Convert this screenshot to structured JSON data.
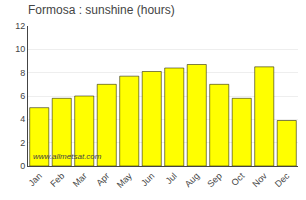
{
  "chart_data": {
    "type": "bar",
    "title": "Formosa : sunshine (hours)",
    "categories": [
      "Jan",
      "Feb",
      "Mar",
      "Apr",
      "May",
      "Jun",
      "Jul",
      "Aug",
      "Sep",
      "Oct",
      "Nov",
      "Dec"
    ],
    "values": [
      5.0,
      5.8,
      6.0,
      7.0,
      7.7,
      8.1,
      8.4,
      8.7,
      7.0,
      5.8,
      8.5,
      3.9
    ],
    "color": "#ffff00",
    "ylim": [
      0,
      12
    ],
    "yticks": [
      0,
      2,
      4,
      6,
      8,
      10,
      12
    ],
    "grid": true,
    "annotations": [
      "www.allmetsat.com"
    ]
  }
}
